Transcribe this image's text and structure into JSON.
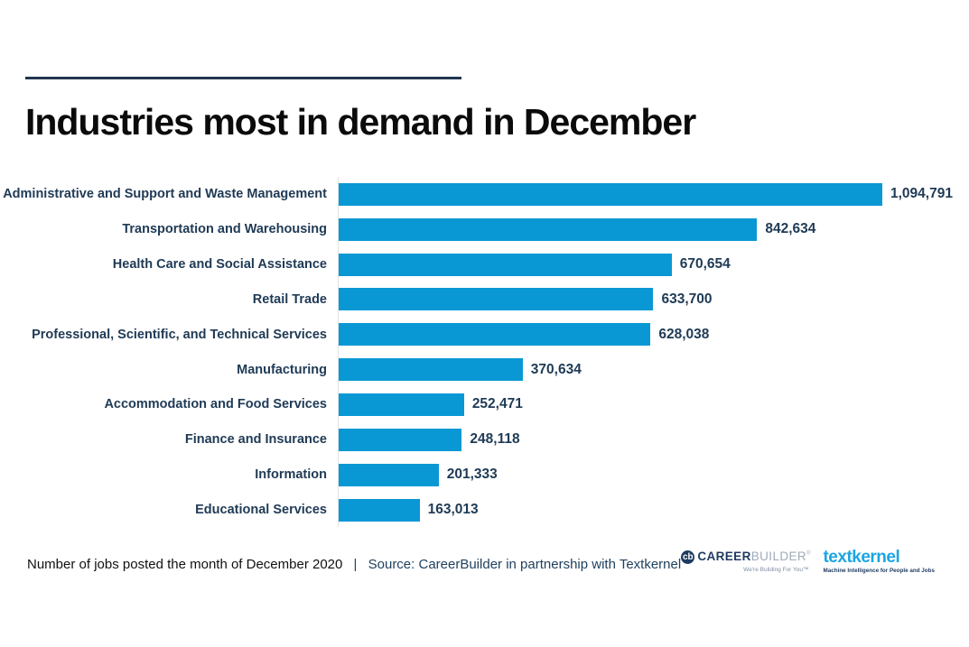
{
  "title": "Industries most in demand in December",
  "chart_data": {
    "type": "bar",
    "orientation": "horizontal",
    "title": "Industries most in demand in December",
    "categories": [
      "Administrative and Support and Waste Management",
      "Transportation and Warehousing",
      "Health Care and Social Assistance",
      "Retail Trade",
      "Professional, Scientific, and Technical Services",
      "Manufacturing",
      "Accommodation and Food Services",
      "Finance and Insurance",
      "Information",
      "Educational Services"
    ],
    "values": [
      1094791,
      842634,
      670654,
      633700,
      628038,
      370634,
      252471,
      248118,
      201333,
      163013
    ],
    "value_labels": [
      "1,094,791",
      "842,634",
      "670,654",
      "633,700",
      "628,038",
      "370,634",
      "252,471",
      "248,118",
      "201,333",
      "163,013"
    ],
    "xlim": [
      0,
      1094791
    ],
    "bar_color": "#0998D4",
    "label_color": "#1F3A55",
    "grid": false,
    "legend": false
  },
  "footer": {
    "note": "Number of jobs posted the month of December 2020",
    "separator": "|",
    "source": "Source: CareerBuilder in partnership with Textkernel"
  },
  "logos": {
    "careerbuilder": {
      "icon_letter": "cb",
      "part1": "CAREER",
      "part2": "BUILDER",
      "trademark": "®",
      "tagline": "We're Building For You™"
    },
    "textkernel": {
      "name": "textkernel",
      "tagline": "Machine Intelligence for People and Jobs"
    }
  },
  "colors": {
    "bar": "#0998D4",
    "navy_text": "#1F3A55",
    "rule": "#22364F",
    "axis_line": "#E2E2E2",
    "textkernel_blue": "#1CA6E2",
    "builder_gray": "#9FABBA"
  }
}
